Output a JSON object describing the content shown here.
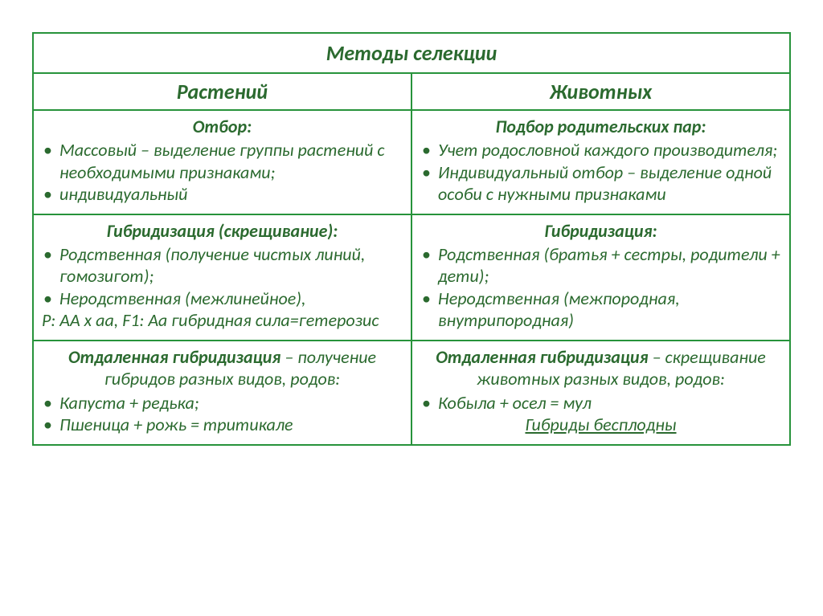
{
  "title": "Методы селекции",
  "columns": {
    "left": "Растений",
    "right": "Животных"
  },
  "rows": [
    {
      "left": {
        "heading": "Отбор:",
        "items": [
          "Массовый – выделение группы растений с необходимыми признаками;",
          "индивидуальный"
        ]
      },
      "right": {
        "heading": "Подбор родительских пар:",
        "items": [
          "Учет родословной каждого производителя;",
          "Индивидуальный отбор – выделение одной особи с нужными признаками"
        ]
      }
    },
    {
      "left": {
        "heading": "Гибридизация (скрещивание):",
        "items": [
          "Родственная (получение чистых линий, гомозигот);",
          "Неродственная (межлинейное),"
        ],
        "tail": "Р: АА х аа, F1: Аа гибридная сила=гетерозис"
      },
      "right": {
        "heading": "Гибридизация:",
        "items": [
          "Родственная (братья + сестры, родители + дети);",
          "Неродственная (межпородная, внутрипородная)"
        ]
      }
    },
    {
      "left": {
        "lead_bold": "Отдаленная гибридизация",
        "lead_rest": " – получение гибридов разных видов, родов:",
        "items": [
          "Капуста + редька;",
          "Пшеница + рожь = тритикале"
        ]
      },
      "right": {
        "lead_bold": "Отдаленная гибридизация",
        "lead_rest": " – скрещивание животных разных видов, родов:",
        "items": [
          "Кобыла + осел = мул"
        ],
        "footer": "Гибриды бесплодны"
      }
    }
  ],
  "colors": {
    "border": "#27933b",
    "text": "#2b6a2f",
    "background": "#ffffff"
  }
}
